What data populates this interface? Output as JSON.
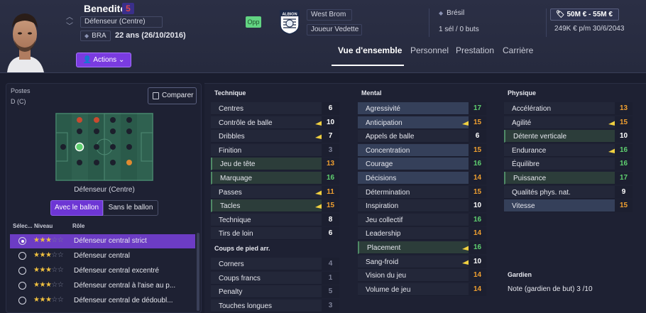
{
  "player": {
    "name": "Benedito",
    "number": "5",
    "position": "Défenseur (Centre)",
    "nationality_code": "BRA",
    "age": "22 ans (26/10/2016)"
  },
  "header": {
    "actions_label": "Actions",
    "opp_badge": "Opp",
    "club": "West Brom",
    "club_crest_text": "ALBION",
    "status": "Joueur Vedette",
    "country": "Brésil",
    "caps": "1 sél / 0 buts",
    "value": "50M € - 55M €",
    "wage": "249K € p/m 30/6/2043"
  },
  "tabs": [
    {
      "label": "Vue d'ensemble",
      "active": true
    },
    {
      "label": "Personnel",
      "active": false
    },
    {
      "label": "Prestation",
      "active": false
    },
    {
      "label": "Carrière",
      "active": false
    }
  ],
  "left": {
    "positions_label": "Postes",
    "positions_value": "D (C)",
    "compare_label": "Comparer",
    "pitch_caption": "Défenseur (Centre)",
    "toggle_on": "Avec le ballon",
    "toggle_off": "Sans le ballon",
    "col_select": "Sélec...",
    "col_level": "Niveau",
    "col_role": "Rôle",
    "roles": [
      {
        "name": "Défenseur central strict",
        "stars": 3,
        "selected": true
      },
      {
        "name": "Défenseur central",
        "stars": 3,
        "selected": false
      },
      {
        "name": "Défenseur central excentré",
        "stars": 3,
        "selected": false
      },
      {
        "name": "Défenseur central à l'aise au p...",
        "stars": 3,
        "selected": false
      },
      {
        "name": "Défenseur central de dédoubl...",
        "stars": 3,
        "selected": false
      }
    ]
  },
  "attributes": {
    "technique_title": "Technique",
    "technique": [
      {
        "name": "Centres",
        "value": "6",
        "color": "white",
        "style": "plain",
        "flag": false
      },
      {
        "name": "Contrôle de balle",
        "value": "10",
        "color": "white",
        "style": "plain",
        "flag": true
      },
      {
        "name": "Dribbles",
        "value": "7",
        "color": "white",
        "style": "plain",
        "flag": true
      },
      {
        "name": "Finition",
        "value": "3",
        "color": "grey",
        "style": "plain",
        "flag": false
      },
      {
        "name": "Jeu de tête",
        "value": "13",
        "color": "orange",
        "style": "gr",
        "flag": false
      },
      {
        "name": "Marquage",
        "value": "16",
        "color": "green",
        "style": "gr",
        "flag": false
      },
      {
        "name": "Passes",
        "value": "11",
        "color": "orange",
        "style": "plain",
        "flag": true
      },
      {
        "name": "Tacles",
        "value": "15",
        "color": "orange",
        "style": "gr",
        "flag": true
      },
      {
        "name": "Technique",
        "value": "8",
        "color": "white",
        "style": "plain",
        "flag": false
      },
      {
        "name": "Tirs de loin",
        "value": "6",
        "color": "white",
        "style": "plain",
        "flag": false
      }
    ],
    "setpieces_title": "Coups de pied arr.",
    "setpieces": [
      {
        "name": "Corners",
        "value": "4",
        "color": "grey",
        "style": "plain",
        "flag": false
      },
      {
        "name": "Coups francs",
        "value": "1",
        "color": "grey",
        "style": "plain",
        "flag": false
      },
      {
        "name": "Penalty",
        "value": "5",
        "color": "grey",
        "style": "plain",
        "flag": false
      },
      {
        "name": "Touches longues",
        "value": "3",
        "color": "grey",
        "style": "plain",
        "flag": false
      }
    ],
    "mental_title": "Mental",
    "mental": [
      {
        "name": "Agressivité",
        "value": "17",
        "color": "green",
        "style": "hl",
        "flag": false
      },
      {
        "name": "Anticipation",
        "value": "15",
        "color": "orange",
        "style": "hl",
        "flag": true
      },
      {
        "name": "Appels de balle",
        "value": "6",
        "color": "white",
        "style": "plain",
        "flag": false
      },
      {
        "name": "Concentration",
        "value": "15",
        "color": "orange",
        "style": "hl",
        "flag": false
      },
      {
        "name": "Courage",
        "value": "16",
        "color": "green",
        "style": "hl",
        "flag": false
      },
      {
        "name": "Décisions",
        "value": "14",
        "color": "orange",
        "style": "hl",
        "flag": false
      },
      {
        "name": "Détermination",
        "value": "15",
        "color": "orange",
        "style": "plain",
        "flag": false
      },
      {
        "name": "Inspiration",
        "value": "10",
        "color": "white",
        "style": "plain",
        "flag": false
      },
      {
        "name": "Jeu collectif",
        "value": "16",
        "color": "green",
        "style": "plain",
        "flag": false
      },
      {
        "name": "Leadership",
        "value": "14",
        "color": "orange",
        "style": "plain",
        "flag": false
      },
      {
        "name": "Placement",
        "value": "16",
        "color": "green",
        "style": "gr",
        "flag": true
      },
      {
        "name": "Sang-froid",
        "value": "10",
        "color": "white",
        "style": "plain",
        "flag": true
      },
      {
        "name": "Vision du jeu",
        "value": "14",
        "color": "orange",
        "style": "plain",
        "flag": false
      },
      {
        "name": "Volume de jeu",
        "value": "14",
        "color": "orange",
        "style": "plain",
        "flag": false
      }
    ],
    "physical_title": "Physique",
    "physical": [
      {
        "name": "Accélération",
        "value": "13",
        "color": "orange",
        "style": "plain",
        "flag": false
      },
      {
        "name": "Agilité",
        "value": "15",
        "color": "orange",
        "style": "plain",
        "flag": true
      },
      {
        "name": "Détente verticale",
        "value": "10",
        "color": "white",
        "style": "gr",
        "flag": false
      },
      {
        "name": "Endurance",
        "value": "16",
        "color": "green",
        "style": "plain",
        "flag": true
      },
      {
        "name": "Équilibre",
        "value": "16",
        "color": "green",
        "style": "plain",
        "flag": false
      },
      {
        "name": "Puissance",
        "value": "17",
        "color": "green",
        "style": "gr",
        "flag": false
      },
      {
        "name": "Qualités phys. nat.",
        "value": "9",
        "color": "white",
        "style": "plain",
        "flag": false
      },
      {
        "name": "Vitesse",
        "value": "15",
        "color": "orange",
        "style": "hl",
        "flag": false
      }
    ],
    "gk_title": "Gardien",
    "gk_note": "Note (gardien de but) 3 /10"
  }
}
